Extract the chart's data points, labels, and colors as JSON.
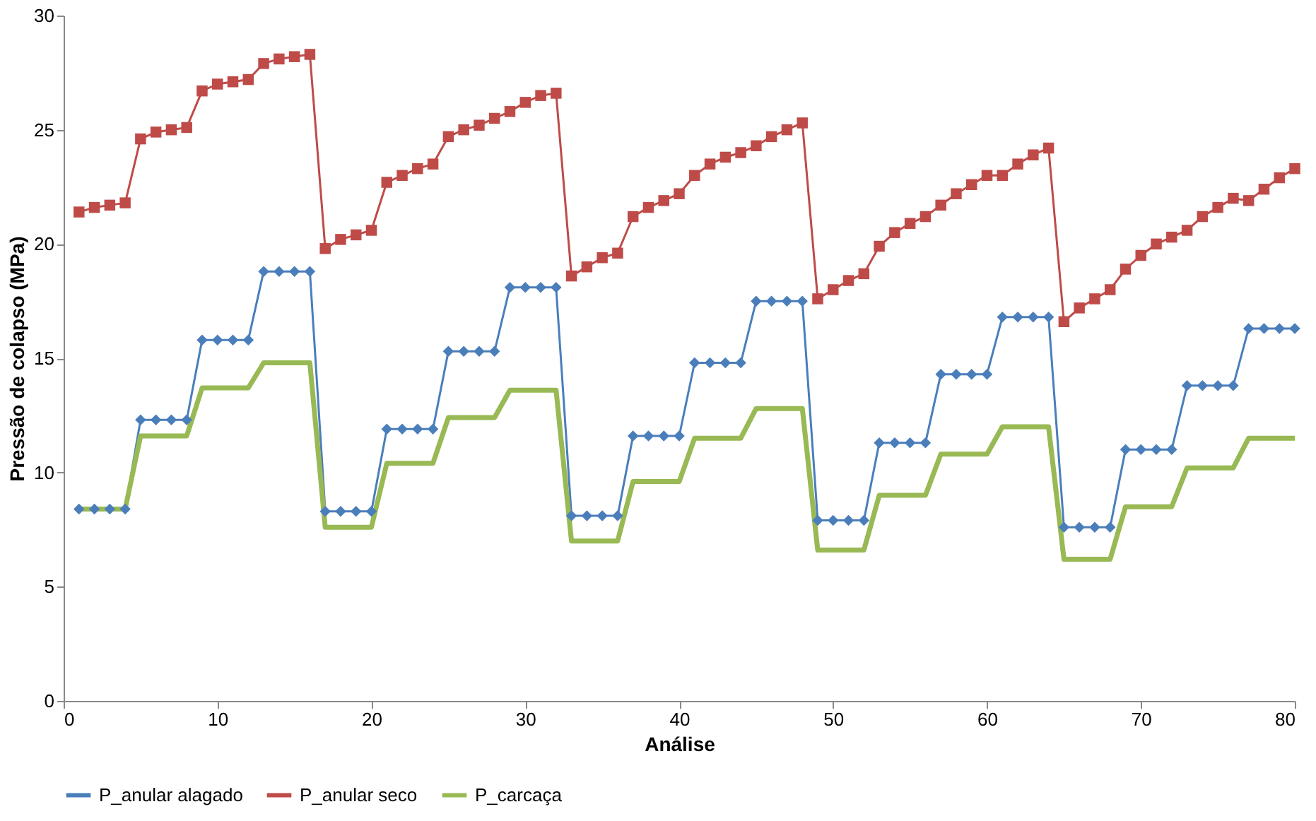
{
  "chart_data": {
    "type": "line",
    "xlabel": "Análise",
    "ylabel": "Pressão de colapso (MPa)",
    "x": [
      1,
      2,
      3,
      4,
      5,
      6,
      7,
      8,
      9,
      10,
      11,
      12,
      13,
      14,
      15,
      16,
      17,
      18,
      19,
      20,
      21,
      22,
      23,
      24,
      25,
      26,
      27,
      28,
      29,
      30,
      31,
      32,
      33,
      34,
      35,
      36,
      37,
      38,
      39,
      40,
      41,
      42,
      43,
      44,
      45,
      46,
      47,
      48,
      49,
      50,
      51,
      52,
      53,
      54,
      55,
      56,
      57,
      58,
      59,
      60,
      61,
      62,
      63,
      64,
      65,
      66,
      67,
      68,
      69,
      70,
      71,
      72,
      73,
      74,
      75,
      76,
      77,
      78,
      79,
      80
    ],
    "series": [
      {
        "name": "P_anular alagado",
        "color": "#4a7ebb",
        "marker": "diamond",
        "values": [
          8.4,
          8.4,
          8.4,
          8.4,
          12.3,
          12.3,
          12.3,
          12.3,
          15.8,
          15.8,
          15.8,
          15.8,
          18.8,
          18.8,
          18.8,
          18.8,
          8.3,
          8.3,
          8.3,
          8.3,
          11.9,
          11.9,
          11.9,
          11.9,
          15.3,
          15.3,
          15.3,
          15.3,
          18.1,
          18.1,
          18.1,
          18.1,
          8.1,
          8.1,
          8.1,
          8.1,
          11.6,
          11.6,
          11.6,
          11.6,
          14.8,
          14.8,
          14.8,
          14.8,
          17.5,
          17.5,
          17.5,
          17.5,
          7.9,
          7.9,
          7.9,
          7.9,
          11.3,
          11.3,
          11.3,
          11.3,
          14.3,
          14.3,
          14.3,
          14.3,
          16.8,
          16.8,
          16.8,
          16.8,
          7.6,
          7.6,
          7.6,
          7.6,
          11.0,
          11.0,
          11.0,
          11.0,
          13.8,
          13.8,
          13.8,
          13.8,
          16.3,
          16.3,
          16.3,
          16.3
        ]
      },
      {
        "name": "P_anular seco",
        "color": "#be4b48",
        "marker": "square",
        "values": [
          21.4,
          21.6,
          21.7,
          21.8,
          24.6,
          24.9,
          25.0,
          25.1,
          26.7,
          27.0,
          27.1,
          27.2,
          27.9,
          28.1,
          28.2,
          28.3,
          19.8,
          20.2,
          20.4,
          20.6,
          22.7,
          23.0,
          23.3,
          23.5,
          24.7,
          25.0,
          25.2,
          25.5,
          25.8,
          26.2,
          26.5,
          26.6,
          18.6,
          19.0,
          19.4,
          19.6,
          21.2,
          21.6,
          21.9,
          22.2,
          23.0,
          23.5,
          23.8,
          24.0,
          24.3,
          24.7,
          25.0,
          25.3,
          17.6,
          18.0,
          18.4,
          18.7,
          19.9,
          20.5,
          20.9,
          21.2,
          21.7,
          22.2,
          22.6,
          23.0,
          23.0,
          23.5,
          23.9,
          24.2,
          16.6,
          17.2,
          17.6,
          18.0,
          18.9,
          19.5,
          20.0,
          20.3,
          20.6,
          21.2,
          21.6,
          22.0,
          21.9,
          22.4,
          22.9,
          23.3
        ]
      },
      {
        "name": "P_carcaça",
        "color": "#98b954",
        "marker": "none",
        "values": [
          8.4,
          8.4,
          8.4,
          8.4,
          11.6,
          11.6,
          11.6,
          11.6,
          13.7,
          13.7,
          13.7,
          13.7,
          14.8,
          14.8,
          14.8,
          14.8,
          7.6,
          7.6,
          7.6,
          7.6,
          10.4,
          10.4,
          10.4,
          10.4,
          12.4,
          12.4,
          12.4,
          12.4,
          13.6,
          13.6,
          13.6,
          13.6,
          7.0,
          7.0,
          7.0,
          7.0,
          9.6,
          9.6,
          9.6,
          9.6,
          11.5,
          11.5,
          11.5,
          11.5,
          12.8,
          12.8,
          12.8,
          12.8,
          6.6,
          6.6,
          6.6,
          6.6,
          9.0,
          9.0,
          9.0,
          9.0,
          10.8,
          10.8,
          10.8,
          10.8,
          12.0,
          12.0,
          12.0,
          12.0,
          6.2,
          6.2,
          6.2,
          6.2,
          8.5,
          8.5,
          8.5,
          8.5,
          10.2,
          10.2,
          10.2,
          10.2,
          11.5,
          11.5,
          11.5,
          11.5
        ]
      }
    ],
    "xlim": [
      0,
      80
    ],
    "xticks": [
      0,
      10,
      20,
      30,
      40,
      50,
      60,
      70,
      80
    ],
    "ylim": [
      0,
      30
    ],
    "yticks": [
      0,
      5,
      10,
      15,
      20,
      25,
      30
    ],
    "grid": false,
    "legend": "bottom",
    "line_style": "solid"
  }
}
